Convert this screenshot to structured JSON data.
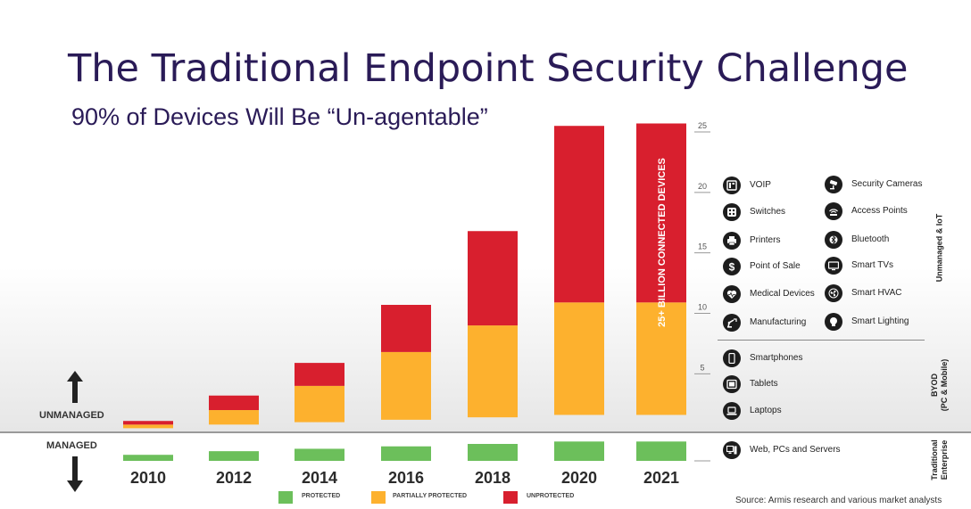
{
  "slide": {
    "title": "The Traditional Endpoint Security Challenge",
    "subtitle": "90% of Devices Will Be “Un-agentable”",
    "unmanaged_label": "UNMANAGED",
    "managed_label": "MANAGED",
    "source": "Source: Armis research and various market analysts"
  },
  "chart_data": {
    "type": "bar",
    "stacked": true,
    "title": "",
    "xlabel": "",
    "ylabel": "",
    "categories": [
      "2010",
      "2012",
      "2014",
      "2016",
      "2018",
      "2020",
      "2021"
    ],
    "series": [
      {
        "name": "PROTECTED",
        "color": "#6cbf5b",
        "values": [
          0.5,
          0.8,
          1.0,
          1.2,
          1.4,
          1.6,
          1.6
        ]
      },
      {
        "name": "PARTIALLY PROTECTED",
        "color": "#fdb12e",
        "values": [
          0.3,
          1.2,
          3.0,
          5.6,
          7.6,
          9.3,
          9.3
        ]
      },
      {
        "name": "UNPROTECTED",
        "color": "#d81f2e",
        "values": [
          0.3,
          1.2,
          1.9,
          3.9,
          7.8,
          14.6,
          14.8
        ]
      }
    ],
    "ylim": [
      -2.2,
      25
    ],
    "yticks": [
      5,
      10,
      15,
      20,
      25
    ],
    "managed_threshold": 1.3,
    "bar_annotation": "25+ BILLION CONNECTED DEVICES",
    "legend_position": "bottom"
  },
  "devices": {
    "unmanaged_iot_label": "Unmanaged & IoT",
    "byod_label_line1": "BYOD",
    "byod_label_line2": "(PC & Mobile)",
    "enterprise_label_line1": "Traditional",
    "enterprise_label_line2": "Enterprise",
    "iot_left": [
      {
        "label": "VOIP",
        "icon": "voip-icon"
      },
      {
        "label": "Switches",
        "icon": "switches-icon"
      },
      {
        "label": "Printers",
        "icon": "printer-icon"
      },
      {
        "label": "Point of Sale",
        "icon": "dollar-icon"
      },
      {
        "label": "Medical Devices",
        "icon": "heart-monitor-icon"
      },
      {
        "label": "Manufacturing",
        "icon": "robot-arm-icon"
      }
    ],
    "iot_right": [
      {
        "label": "Security Cameras",
        "icon": "security-camera-icon"
      },
      {
        "label": "Access Points",
        "icon": "wifi-icon"
      },
      {
        "label": "Bluetooth",
        "icon": "bluetooth-icon"
      },
      {
        "label": "Smart TVs",
        "icon": "tv-icon"
      },
      {
        "label": "Smart HVAC",
        "icon": "fan-icon"
      },
      {
        "label": "Smart Lighting",
        "icon": "lightbulb-icon"
      }
    ],
    "byod": [
      {
        "label": "Smartphones",
        "icon": "smartphone-icon"
      },
      {
        "label": "Tablets",
        "icon": "tablet-icon"
      },
      {
        "label": "Laptops",
        "icon": "laptop-icon"
      }
    ],
    "enterprise": [
      {
        "label": "Web, PCs and Servers",
        "icon": "server-icon"
      }
    ]
  }
}
